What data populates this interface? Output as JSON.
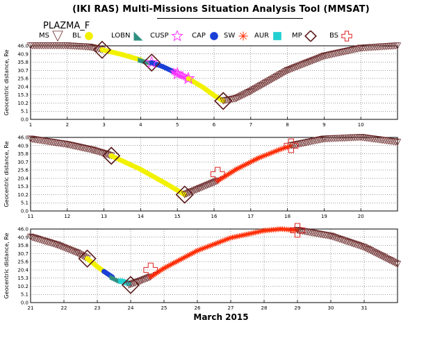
{
  "title": "(IKI RAS) Multi-Missions Situation Analysis Tool (MMSAT)",
  "satellite": "PLAZMA_F",
  "legend": [
    {
      "label": "MS",
      "icon": "triangle-down-icon",
      "color": "#6b2a2a"
    },
    {
      "label": "BL",
      "icon": "dot-icon",
      "color": "#f2f200"
    },
    {
      "label": "LOBN",
      "icon": "wedge-icon",
      "color": "#2f8f80"
    },
    {
      "label": "CUSP",
      "icon": "star-icon",
      "color": "#ff33ff"
    },
    {
      "label": "CAP",
      "icon": "dot-icon",
      "color": "#1a3fd6"
    },
    {
      "label": "SW",
      "icon": "asterisk-icon",
      "color": "#ff2a00"
    },
    {
      "label": "AUR",
      "icon": "square-icon",
      "color": "#22d0d0"
    },
    {
      "label": "MP",
      "icon": "diamond-icon",
      "color": "#5a1a1a"
    },
    {
      "label": "BS",
      "icon": "cross-icon",
      "color": "#e02020"
    }
  ],
  "colors": {
    "MS": "#6b2a2a",
    "BL": "#f2f200",
    "LOBN": "#2f8f80",
    "CUSP": "#ff33ff",
    "CAP": "#1a3fd6",
    "SW": "#ff2a00",
    "AUR": "#22d0d0",
    "MP": "#5a1a1a",
    "BS": "#e02020"
  },
  "chart_data": [
    {
      "type": "line",
      "xlabel": "",
      "ylabel": "Geocentric distance, Re",
      "xlim": [
        1,
        11
      ],
      "ylim": [
        0,
        46
      ],
      "x_ticks": [
        "1",
        "2",
        "3",
        "4",
        "5",
        "6",
        "7",
        "8",
        "9",
        "10"
      ],
      "y_ticks": [
        "46.0",
        "40.9",
        "35.8",
        "30.7",
        "25.6",
        "20.4",
        "15.3",
        "10.2",
        "5.1",
        "0.0"
      ],
      "segments": [
        {
          "name": "MS",
          "x": [
            1.0,
            2.0,
            2.6,
            2.95
          ],
          "y": [
            46.0,
            46.0,
            45.2,
            43.5
          ]
        },
        {
          "name": "BL",
          "x": [
            2.95,
            3.5,
            4.0
          ],
          "y": [
            43.5,
            40.5,
            37.2
          ]
        },
        {
          "name": "LOBN",
          "x": [
            4.0,
            4.3
          ],
          "y": [
            37.2,
            35.5
          ]
        },
        {
          "name": "CAP",
          "x": [
            4.3,
            4.6,
            4.9
          ],
          "y": [
            35.5,
            33.0,
            29.8
          ]
        },
        {
          "name": "CUSP",
          "x": [
            4.9,
            5.3
          ],
          "y": [
            29.8,
            25.5
          ]
        },
        {
          "name": "BL",
          "x": [
            5.3,
            5.7,
            6.0,
            6.25
          ],
          "y": [
            25.5,
            20.0,
            15.0,
            11.5
          ]
        },
        {
          "name": "MS",
          "x": [
            6.25,
            6.6,
            7.0,
            8.0,
            9.0,
            10.0,
            11.0
          ],
          "y": [
            11.5,
            13.0,
            17.5,
            30.5,
            39.5,
            44.5,
            46.0
          ]
        }
      ],
      "markers": [
        {
          "name": "MP",
          "x": [
            2.95,
            4.3,
            6.25
          ],
          "y": [
            43.5,
            35.5,
            11.5
          ]
        },
        {
          "name": "CUSP",
          "x": [
            4.3,
            5.0,
            5.3
          ],
          "y": [
            35.5,
            28.5,
            25.5
          ]
        }
      ]
    },
    {
      "type": "line",
      "xlabel": "",
      "ylabel": "Geocentric distance, Re",
      "xlim": [
        11,
        21
      ],
      "ylim": [
        0,
        46
      ],
      "x_ticks": [
        "11",
        "12",
        "13",
        "14",
        "15",
        "16",
        "17",
        "18",
        "19",
        "20"
      ],
      "y_ticks": [
        "46.0",
        "40.9",
        "35.8",
        "30.7",
        "25.6",
        "20.4",
        "15.3",
        "10.2",
        "5.1",
        "0.0"
      ],
      "segments": [
        {
          "name": "MS",
          "x": [
            11.0,
            12.0,
            12.7,
            13.2
          ],
          "y": [
            45.0,
            41.5,
            38.0,
            34.5
          ]
        },
        {
          "name": "BL",
          "x": [
            13.2,
            14.0,
            14.7,
            15.2
          ],
          "y": [
            34.5,
            26.0,
            17.0,
            10.2
          ]
        },
        {
          "name": "MS",
          "x": [
            15.2,
            15.6,
            16.1
          ],
          "y": [
            10.2,
            14.0,
            18.8
          ]
        },
        {
          "name": "SW",
          "x": [
            16.1,
            16.6,
            17.2,
            17.8,
            18.1
          ],
          "y": [
            18.8,
            26.0,
            33.0,
            38.5,
            40.8
          ]
        },
        {
          "name": "MS",
          "x": [
            18.1,
            19.0,
            20.0,
            21.0
          ],
          "y": [
            40.8,
            45.0,
            46.0,
            43.0
          ]
        }
      ],
      "markers": [
        {
          "name": "MP",
          "x": [
            13.2,
            15.2
          ],
          "y": [
            34.5,
            10.2
          ]
        },
        {
          "name": "BS",
          "x": [
            16.1,
            18.1
          ],
          "y": [
            23.0,
            40.8
          ]
        }
      ]
    },
    {
      "type": "line",
      "xlabel": "March 2015",
      "ylabel": "Geocentric distance, Re",
      "xlim": [
        21,
        32
      ],
      "ylim": [
        0,
        46
      ],
      "x_ticks": [
        "21",
        "22",
        "23",
        "24",
        "25",
        "26",
        "27",
        "28",
        "29",
        "30",
        "31"
      ],
      "y_ticks": [
        "46.0",
        "40.9",
        "35.8",
        "30.7",
        "25.6",
        "20.4",
        "15.3",
        "10.2",
        "5.1",
        "0.0"
      ],
      "segments": [
        {
          "name": "MS",
          "x": [
            21.0,
            21.8,
            22.4,
            22.7
          ],
          "y": [
            41.0,
            36.0,
            31.0,
            27.5
          ]
        },
        {
          "name": "BL",
          "x": [
            22.7,
            23.0,
            23.2
          ],
          "y": [
            27.5,
            22.5,
            19.5
          ]
        },
        {
          "name": "CAP",
          "x": [
            23.2,
            23.45
          ],
          "y": [
            19.5,
            16.0
          ]
        },
        {
          "name": "LOBN",
          "x": [
            23.45,
            23.7
          ],
          "y": [
            16.0,
            13.5
          ]
        },
        {
          "name": "AUR",
          "x": [
            23.7,
            23.95
          ],
          "y": [
            13.5,
            12.0
          ]
        },
        {
          "name": "MS",
          "x": [
            23.95,
            24.3,
            24.6
          ],
          "y": [
            11.0,
            13.5,
            16.0
          ]
        },
        {
          "name": "SW",
          "x": [
            24.6,
            25.0,
            26.0,
            27.0,
            28.0,
            28.5,
            29.0
          ],
          "y": [
            16.0,
            21.5,
            32.5,
            40.5,
            45.0,
            46.0,
            45.2
          ]
        },
        {
          "name": "MS",
          "x": [
            29.0,
            30.0,
            31.0,
            32.0
          ],
          "y": [
            45.2,
            41.5,
            34.5,
            24.0
          ]
        }
      ],
      "markers": [
        {
          "name": "MP",
          "x": [
            22.7,
            24.0
          ],
          "y": [
            27.5,
            11.0
          ]
        },
        {
          "name": "BS",
          "x": [
            24.6,
            29.0
          ],
          "y": [
            20.4,
            45.2
          ]
        }
      ]
    }
  ]
}
